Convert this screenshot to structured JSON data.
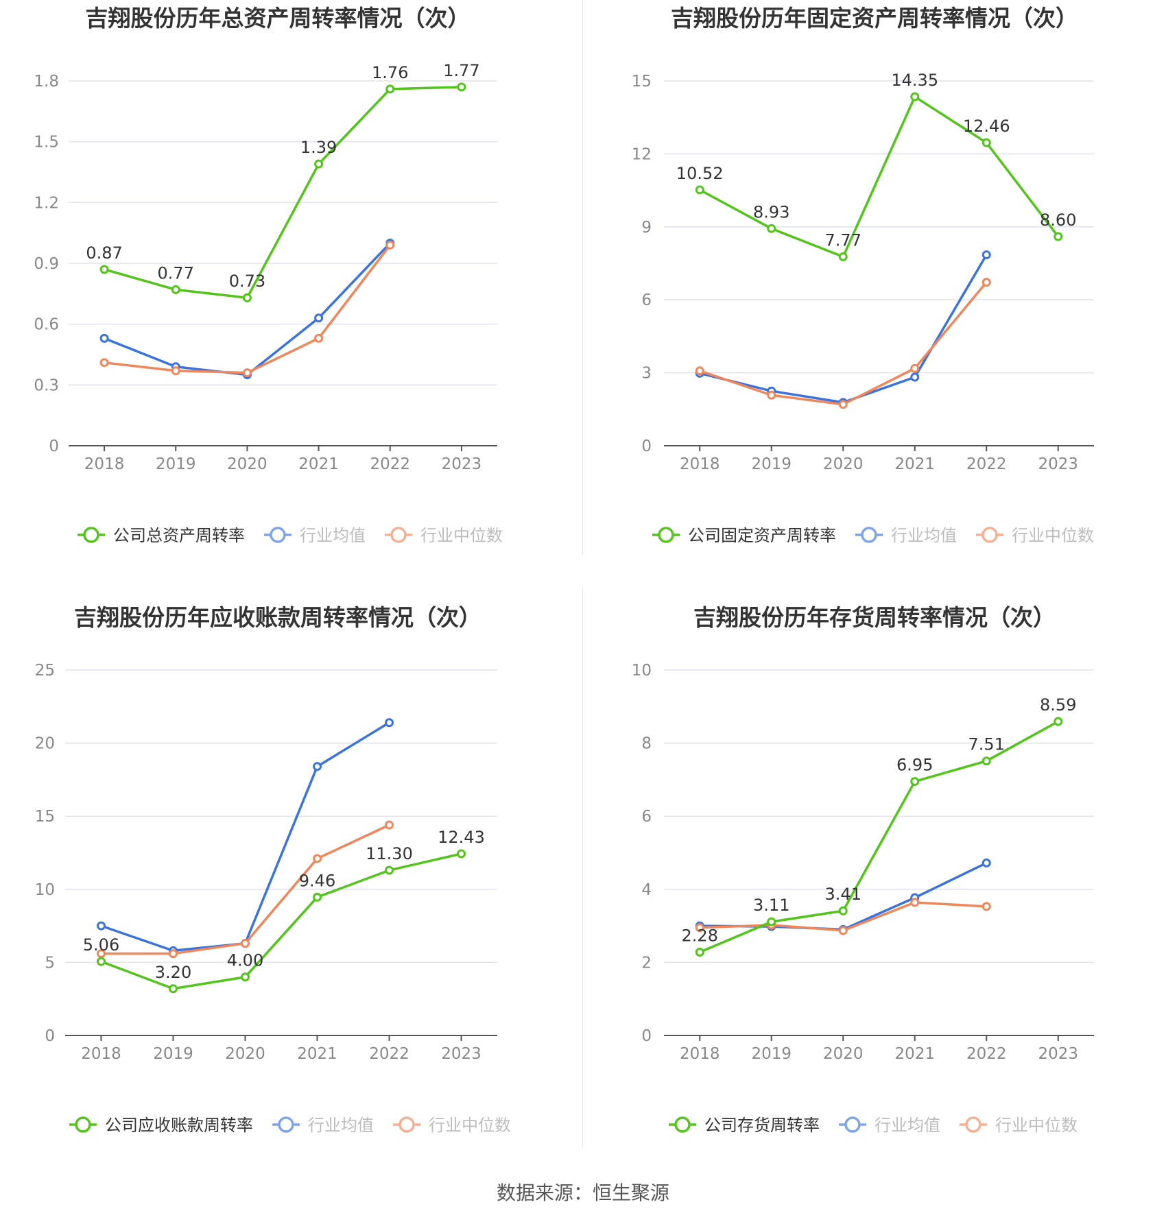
{
  "source_text": "数据来源：恒生聚源",
  "series_colors": {
    "company": "#52c41a",
    "mean": "#3b73de",
    "median": "#f0875a"
  },
  "legend_text_colors": {
    "company": "#333333",
    "industry": "#999999"
  },
  "chart_data": [
    {
      "type": "line",
      "title": "吉翔股份历年总资产周转率情况（次）",
      "categories": [
        "2018",
        "2019",
        "2020",
        "2021",
        "2022",
        "2023"
      ],
      "ylim": [
        0,
        1.8
      ],
      "yticks": [
        "0",
        "0.3",
        "0.6",
        "0.9",
        "1.2",
        "1.5",
        "1.8"
      ],
      "series": [
        {
          "name": "公司总资产周转率",
          "key": "company",
          "values": [
            0.87,
            0.77,
            0.73,
            1.39,
            1.76,
            1.77
          ],
          "labels": [
            "0.87",
            "0.77",
            "0.73",
            "1.39",
            "1.76",
            "1.77"
          ]
        },
        {
          "name": "行业均值",
          "key": "mean",
          "values": [
            0.53,
            0.39,
            0.35,
            0.63,
            1.0,
            null
          ]
        },
        {
          "name": "行业中位数",
          "key": "median",
          "values": [
            0.41,
            0.37,
            0.36,
            0.53,
            0.99,
            null
          ]
        }
      ]
    },
    {
      "type": "line",
      "title": "吉翔股份历年固定资产周转率情况（次）",
      "categories": [
        "2018",
        "2019",
        "2020",
        "2021",
        "2022",
        "2023"
      ],
      "ylim": [
        0,
        15
      ],
      "yticks": [
        "0",
        "3",
        "6",
        "9",
        "12",
        "15"
      ],
      "series": [
        {
          "name": "公司固定资产周转率",
          "key": "company",
          "values": [
            10.52,
            8.93,
            7.77,
            14.35,
            12.46,
            8.6
          ],
          "labels": [
            "10.52",
            "8.93",
            "7.77",
            "14.35",
            "12.46",
            "8.60"
          ]
        },
        {
          "name": "行业均值",
          "key": "mean",
          "values": [
            2.98,
            2.25,
            1.78,
            2.82,
            7.85,
            null
          ]
        },
        {
          "name": "行业中位数",
          "key": "median",
          "values": [
            3.08,
            2.08,
            1.7,
            3.18,
            6.72,
            null
          ]
        }
      ]
    },
    {
      "type": "line",
      "title": "吉翔股份历年应收账款周转率情况（次）",
      "categories": [
        "2018",
        "2019",
        "2020",
        "2021",
        "2022",
        "2023"
      ],
      "ylim": [
        0,
        25
      ],
      "yticks": [
        "0",
        "5",
        "10",
        "15",
        "20",
        "25"
      ],
      "series": [
        {
          "name": "公司应收账款周转率",
          "key": "company",
          "values": [
            5.06,
            3.2,
            4.0,
            9.46,
            11.3,
            12.43
          ],
          "labels": [
            "5.06",
            "3.20",
            "4.00",
            "9.46",
            "11.30",
            "12.43"
          ]
        },
        {
          "name": "行业均值",
          "key": "mean",
          "values": [
            7.5,
            5.8,
            6.3,
            18.4,
            21.4,
            null
          ]
        },
        {
          "name": "行业中位数",
          "key": "median",
          "values": [
            5.6,
            5.6,
            6.3,
            12.1,
            14.4,
            null
          ]
        }
      ]
    },
    {
      "type": "line",
      "title": "吉翔股份历年存货周转率情况（次）",
      "categories": [
        "2018",
        "2019",
        "2020",
        "2021",
        "2022",
        "2023"
      ],
      "ylim": [
        0,
        10
      ],
      "yticks": [
        "0",
        "2",
        "4",
        "6",
        "8",
        "10"
      ],
      "series": [
        {
          "name": "公司存货周转率",
          "key": "company",
          "values": [
            2.28,
            3.11,
            3.41,
            6.95,
            7.51,
            8.59
          ],
          "labels": [
            "2.28",
            "3.11",
            "3.41",
            "6.95",
            "7.51",
            "8.59"
          ]
        },
        {
          "name": "行业均值",
          "key": "mean",
          "values": [
            3.0,
            2.98,
            2.9,
            3.77,
            4.72,
            null
          ]
        },
        {
          "name": "行业中位数",
          "key": "median",
          "values": [
            2.95,
            3.02,
            2.87,
            3.64,
            3.53,
            null
          ]
        }
      ]
    }
  ]
}
